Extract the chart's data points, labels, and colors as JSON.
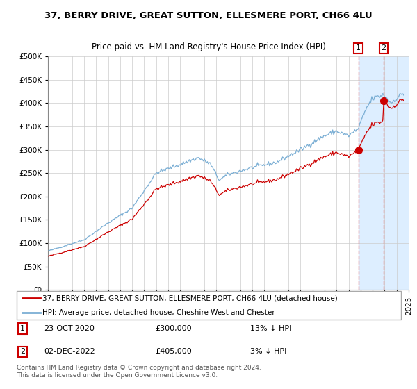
{
  "title": "37, BERRY DRIVE, GREAT SUTTON, ELLESMERE PORT, CH66 4LU",
  "subtitle": "Price paid vs. HM Land Registry's House Price Index (HPI)",
  "hpi_label": "HPI: Average price, detached house, Cheshire West and Chester",
  "property_label": "37, BERRY DRIVE, GREAT SUTTON, ELLESMERE PORT, CH66 4LU (detached house)",
  "hpi_color": "#7aaed4",
  "property_color": "#cc0000",
  "annotation_color": "#e88080",
  "annotation_box_color": "#cc0000",
  "shaded_region_color": "#ddeeff",
  "grid_color": "#cccccc",
  "background_color": "#ffffff",
  "ylim": [
    0,
    500000
  ],
  "yticks": [
    0,
    50000,
    100000,
    150000,
    200000,
    250000,
    300000,
    350000,
    400000,
    450000,
    500000
  ],
  "x_start_year": 1995,
  "x_end_year": 2025,
  "transaction1_date": 2020.81,
  "transaction1_price": 300000,
  "transaction2_date": 2022.92,
  "transaction2_price": 405000,
  "table_rows": [
    {
      "num": "1",
      "date": "23-OCT-2020",
      "price": "£300,000",
      "pct": "13% ↓ HPI"
    },
    {
      "num": "2",
      "date": "02-DEC-2022",
      "price": "£405,000",
      "pct": "3% ↓ HPI"
    }
  ],
  "footer": "Contains HM Land Registry data © Crown copyright and database right 2024.\nThis data is licensed under the Open Government Licence v3.0."
}
